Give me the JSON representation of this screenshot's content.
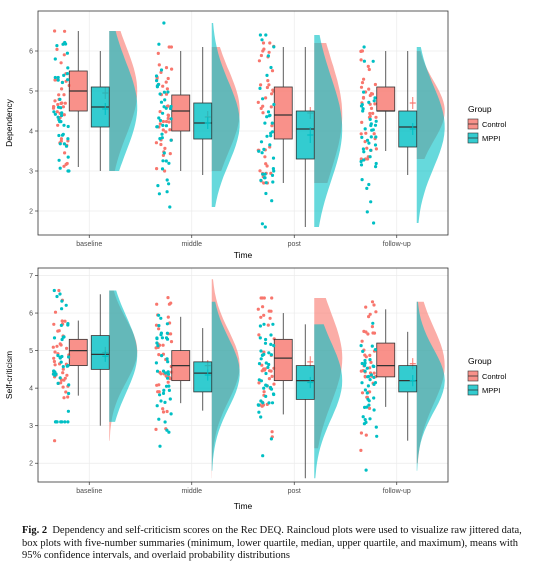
{
  "colors": {
    "control": "#F8766D",
    "mppi": "#00BFC4",
    "panel_bg": "#ffffff",
    "panel_border": "#333333",
    "grid": "#ebebeb",
    "box_line": "#333333"
  },
  "caption": {
    "label": "Fig. 2",
    "text": "Dependency and self-criticism scores on the Rec DEQ. Raincloud plots were used to visualize raw jittered data, box plots with five-number summaries (minimum, lower quartile, median, upper quartile, and maximum), means with 95% confidence intervals, and overlaid probability distributions"
  },
  "chart_data": [
    {
      "type": "raincloud",
      "xlabel": "Time",
      "ylabel": "Dependency",
      "ylim": [
        1.4,
        7.0
      ],
      "yticks": [
        2,
        3,
        4,
        5,
        6
      ],
      "categories": [
        "baseline",
        "middle",
        "post",
        "follow-up"
      ],
      "legend": {
        "title": "Group",
        "entries": [
          "Control",
          "MPPI"
        ],
        "position": "right"
      },
      "series": [
        {
          "name": "Control",
          "box": [
            {
              "min": 3.1,
              "q1": 4.5,
              "median": 5.0,
              "q3": 5.5,
              "max": 6.5
            },
            {
              "min": 3.0,
              "q1": 4.0,
              "median": 4.5,
              "q3": 4.9,
              "max": 6.0
            },
            {
              "min": 2.7,
              "q1": 3.8,
              "median": 4.4,
              "q3": 5.1,
              "max": 6.1
            },
            {
              "min": 3.5,
              "q1": 4.5,
              "median": 4.5,
              "q3": 5.1,
              "max": 6.0
            }
          ],
          "mean": [
            4.95,
            4.35,
            4.45,
            4.7
          ],
          "ci": [
            [
              4.8,
              5.1
            ],
            [
              4.2,
              4.5
            ],
            [
              4.3,
              4.6
            ],
            [
              4.55,
              4.85
            ]
          ],
          "density_range": [
            [
              3.0,
              6.5
            ],
            [
              3.0,
              6.1
            ],
            [
              2.7,
              6.2
            ],
            [
              3.3,
              6.0
            ]
          ]
        },
        {
          "name": "MPPI",
          "box": [
            {
              "min": 3.0,
              "q1": 4.1,
              "median": 4.6,
              "q3": 5.1,
              "max": 6.0
            },
            {
              "min": 2.9,
              "q1": 3.8,
              "median": 4.2,
              "q3": 4.7,
              "max": 6.1
            },
            {
              "min": 1.6,
              "q1": 3.3,
              "median": 4.05,
              "q3": 4.5,
              "max": 6.1
            },
            {
              "min": 2.9,
              "q1": 3.6,
              "median": 4.1,
              "q3": 4.5,
              "max": 6.0
            }
          ],
          "mean": [
            4.55,
            4.2,
            3.9,
            4.05
          ],
          "ci": [
            [
              4.4,
              4.7
            ],
            [
              4.05,
              4.35
            ],
            [
              3.7,
              4.1
            ],
            [
              3.9,
              4.2
            ]
          ],
          "density_range": [
            [
              3.0,
              6.5
            ],
            [
              2.1,
              6.7
            ],
            [
              1.6,
              6.4
            ],
            [
              1.7,
              6.1
            ]
          ]
        }
      ]
    },
    {
      "type": "raincloud",
      "xlabel": "Time",
      "ylabel": "Self-criticism",
      "ylim": [
        1.5,
        7.2
      ],
      "yticks": [
        2,
        3,
        4,
        5,
        6,
        7
      ],
      "categories": [
        "baseline",
        "middle",
        "post",
        "follow-up"
      ],
      "legend": {
        "title": "Group",
        "entries": [
          "Control",
          "MPPI"
        ],
        "position": "right"
      },
      "series": [
        {
          "name": "Control",
          "box": [
            {
              "min": 3.8,
              "q1": 4.6,
              "median": 5.0,
              "q3": 5.3,
              "max": 5.8
            },
            {
              "min": 3.6,
              "q1": 4.2,
              "median": 4.6,
              "q3": 5.0,
              "max": 5.9
            },
            {
              "min": 3.3,
              "q1": 4.2,
              "median": 4.8,
              "q3": 5.3,
              "max": 6.0
            },
            {
              "min": 3.5,
              "q1": 4.3,
              "median": 4.6,
              "q3": 5.2,
              "max": 6.1
            }
          ],
          "mean": [
            4.95,
            4.6,
            4.7,
            4.65
          ],
          "ci": [
            [
              4.8,
              5.1
            ],
            [
              4.45,
              4.75
            ],
            [
              4.55,
              4.85
            ],
            [
              4.5,
              4.8
            ]
          ],
          "density_range": [
            [
              2.6,
              6.6
            ],
            [
              1.6,
              6.9
            ],
            [
              2.4,
              6.4
            ],
            [
              2.0,
              6.3
            ]
          ]
        },
        {
          "name": "MPPI",
          "box": [
            {
              "min": 3.0,
              "q1": 4.5,
              "median": 4.9,
              "q3": 5.4,
              "max": 6.5
            },
            {
              "min": 3.4,
              "q1": 3.9,
              "median": 4.4,
              "q3": 4.7,
              "max": 5.6
            },
            {
              "min": 1.6,
              "q1": 3.7,
              "median": 4.2,
              "q3": 4.6,
              "max": 5.7
            },
            {
              "min": 2.6,
              "q1": 3.9,
              "median": 4.2,
              "q3": 4.6,
              "max": 5.5
            }
          ],
          "mean": [
            4.85,
            4.35,
            4.15,
            4.2
          ],
          "ci": [
            [
              4.7,
              5.0
            ],
            [
              4.2,
              4.5
            ],
            [
              4.0,
              4.3
            ],
            [
              4.05,
              4.35
            ]
          ],
          "density_range": [
            [
              3.1,
              6.6
            ],
            [
              1.8,
              6.3
            ],
            [
              1.6,
              5.7
            ],
            [
              1.8,
              6.3
            ]
          ]
        }
      ]
    }
  ]
}
